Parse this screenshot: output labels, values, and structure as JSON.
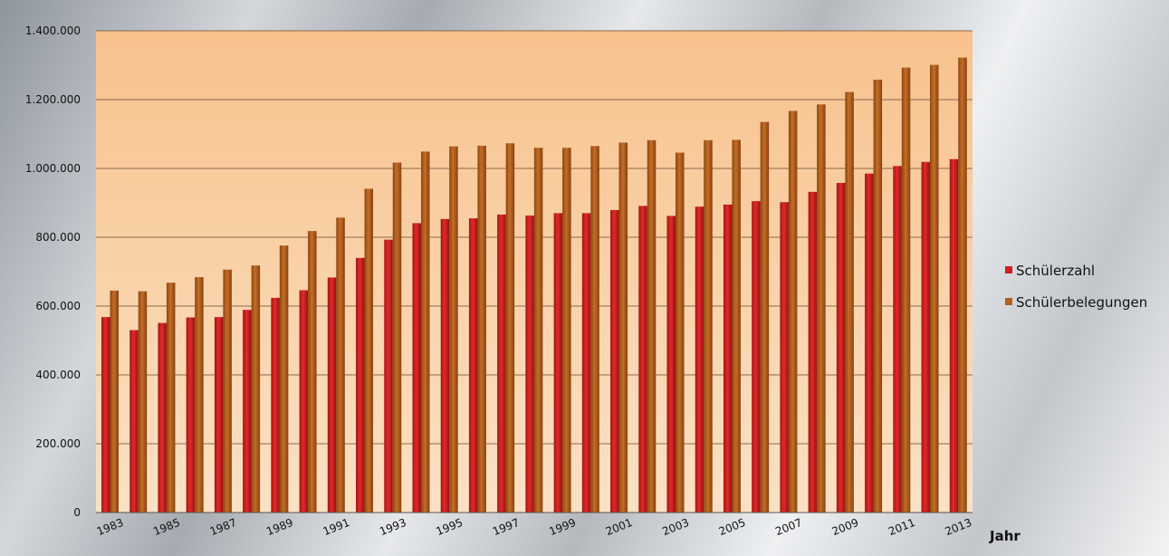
{
  "chart_data": {
    "type": "bar",
    "categories": [
      "1983",
      "1984",
      "1985",
      "1986",
      "1987",
      "1988",
      "1989",
      "1990",
      "1991",
      "1992",
      "1993",
      "1994",
      "1995",
      "1996",
      "1997",
      "1998",
      "1999",
      "2000",
      "2001",
      "2002",
      "2003",
      "2004",
      "2005",
      "2006",
      "2007",
      "2008",
      "2009",
      "2010",
      "2011",
      "2012",
      "2013"
    ],
    "x_tick_labels": [
      "1983",
      "1985",
      "1987",
      "1989",
      "1991",
      "1993",
      "1995",
      "1997",
      "1999",
      "2001",
      "2003",
      "2005",
      "2007",
      "2009",
      "2011",
      "2013"
    ],
    "series": [
      {
        "name": "Schülerzahl",
        "color": "#d01f1f",
        "values": [
          568000,
          530000,
          551000,
          567000,
          568000,
          589000,
          624000,
          646000,
          683000,
          740000,
          793000,
          841000,
          853000,
          855000,
          866000,
          863000,
          870000,
          870000,
          879000,
          891000,
          862000,
          889000,
          895000,
          905000,
          902000,
          932000,
          958000,
          985000,
          1007000,
          1019000,
          1027000
        ]
      },
      {
        "name": "Schülerbelegungen",
        "color": "#b3601f",
        "values": [
          645000,
          643000,
          668000,
          684000,
          706000,
          718000,
          776000,
          818000,
          857000,
          941000,
          1017000,
          1049000,
          1064000,
          1066000,
          1073000,
          1060000,
          1060000,
          1065000,
          1075000,
          1082000,
          1046000,
          1082000,
          1083000,
          1135000,
          1167000,
          1186000,
          1222000,
          1258000,
          1293000,
          1301000,
          1322000
        ]
      }
    ],
    "y_ticks": [
      "0",
      "200.000",
      "400.000",
      "600.000",
      "800.000",
      "1.000.000",
      "1.200.000",
      "1.400.000"
    ],
    "ylim": [
      0,
      1400000
    ],
    "xlabel": "Jahr",
    "ylabel": "",
    "title": "",
    "grid": true,
    "legend_position": "right",
    "plot_background": "#f7c89a"
  }
}
